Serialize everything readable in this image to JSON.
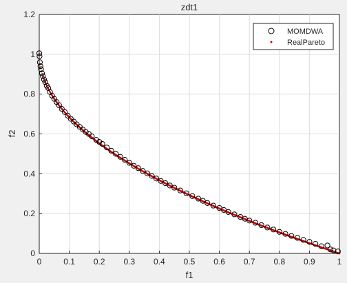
{
  "chart_data": {
    "type": "scatter",
    "title": "zdt1",
    "xlabel": "f1",
    "ylabel": "f2",
    "xlim": [
      0,
      1
    ],
    "ylim": [
      0,
      1.2
    ],
    "xticks": [
      "0",
      "0.1",
      "0.2",
      "0.3",
      "0.4",
      "0.5",
      "0.6",
      "0.7",
      "0.8",
      "0.9",
      "1"
    ],
    "yticks": [
      "0",
      "0.2",
      "0.4",
      "0.6",
      "0.8",
      "1",
      "1.2"
    ],
    "grid": true,
    "legend_position": "top-right",
    "series": [
      {
        "name": "MOMDWA",
        "marker": "open-circle",
        "color": "#000000",
        "points": [
          [
            0.0,
            1.005
          ],
          [
            0.001,
            0.99
          ],
          [
            0.002,
            0.96
          ],
          [
            0.004,
            0.94
          ],
          [
            0.006,
            0.925
          ],
          [
            0.009,
            0.905
          ],
          [
            0.012,
            0.89
          ],
          [
            0.016,
            0.873
          ],
          [
            0.02,
            0.86
          ],
          [
            0.025,
            0.842
          ],
          [
            0.03,
            0.83
          ],
          [
            0.036,
            0.81
          ],
          [
            0.043,
            0.792
          ],
          [
            0.05,
            0.776
          ],
          [
            0.058,
            0.76
          ],
          [
            0.066,
            0.744
          ],
          [
            0.075,
            0.726
          ],
          [
            0.085,
            0.71
          ],
          [
            0.095,
            0.692
          ],
          [
            0.105,
            0.676
          ],
          [
            0.115,
            0.662
          ],
          [
            0.125,
            0.648
          ],
          [
            0.135,
            0.635
          ],
          [
            0.145,
            0.622
          ],
          [
            0.155,
            0.61
          ],
          [
            0.165,
            0.6
          ],
          [
            0.175,
            0.588
          ],
          [
            0.19,
            0.57
          ],
          [
            0.2,
            0.56
          ],
          [
            0.21,
            0.55
          ],
          [
            0.225,
            0.532
          ],
          [
            0.24,
            0.516
          ],
          [
            0.255,
            0.5
          ],
          [
            0.27,
            0.485
          ],
          [
            0.285,
            0.47
          ],
          [
            0.3,
            0.455
          ],
          [
            0.315,
            0.44
          ],
          [
            0.33,
            0.428
          ],
          [
            0.345,
            0.414
          ],
          [
            0.36,
            0.402
          ],
          [
            0.375,
            0.389
          ],
          [
            0.39,
            0.376
          ],
          [
            0.405,
            0.364
          ],
          [
            0.42,
            0.353
          ],
          [
            0.435,
            0.341
          ],
          [
            0.45,
            0.33
          ],
          [
            0.47,
            0.316
          ],
          [
            0.49,
            0.302
          ],
          [
            0.51,
            0.288
          ],
          [
            0.53,
            0.275
          ],
          [
            0.545,
            0.264
          ],
          [
            0.56,
            0.253
          ],
          [
            0.58,
            0.24
          ],
          [
            0.6,
            0.228
          ],
          [
            0.615,
            0.218
          ],
          [
            0.63,
            0.208
          ],
          [
            0.65,
            0.196
          ],
          [
            0.67,
            0.183
          ],
          [
            0.685,
            0.174
          ],
          [
            0.7,
            0.165
          ],
          [
            0.72,
            0.154
          ],
          [
            0.74,
            0.142
          ],
          [
            0.76,
            0.13
          ],
          [
            0.78,
            0.12
          ],
          [
            0.8,
            0.108
          ],
          [
            0.82,
            0.098
          ],
          [
            0.84,
            0.088
          ],
          [
            0.86,
            0.078
          ],
          [
            0.88,
            0.068
          ],
          [
            0.9,
            0.058
          ],
          [
            0.92,
            0.048
          ],
          [
            0.94,
            0.036
          ],
          [
            0.96,
            0.04
          ],
          [
            0.97,
            0.02
          ],
          [
            0.98,
            0.015
          ],
          [
            0.995,
            0.01
          ]
        ]
      },
      {
        "name": "RealPareto",
        "marker": "dot",
        "color": "#cc0000",
        "function": "1 - sqrt(f1)"
      }
    ]
  }
}
